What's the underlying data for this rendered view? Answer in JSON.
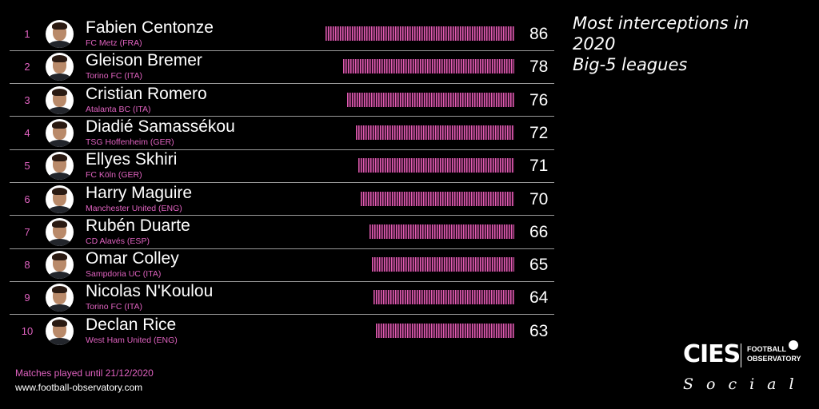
{
  "chart_data": {
    "type": "bar",
    "title_lines": [
      "Most interceptions in",
      "2020",
      "Big-5 leagues"
    ],
    "categories": [
      "Fabien Centonze",
      "Gleison Bremer",
      "Cristian Romero",
      "Diadié Samassékou",
      "Ellyes Skhiri",
      "Harry Maguire",
      "Rubén Duarte",
      "Omar Colley",
      "Nicolas N'Koulou",
      "Declan Rice"
    ],
    "values": [
      86,
      78,
      76,
      72,
      71,
      70,
      66,
      65,
      64,
      63
    ],
    "rows": [
      {
        "rank": "1",
        "name": "Fabien Centonze",
        "club": "FC Metz (FRA)",
        "value": 86
      },
      {
        "rank": "2",
        "name": "Gleison Bremer",
        "club": "Torino FC (ITA)",
        "value": 78
      },
      {
        "rank": "3",
        "name": "Cristian Romero",
        "club": "Atalanta BC (ITA)",
        "value": 76
      },
      {
        "rank": "4",
        "name": "Diadié Samassékou",
        "club": "TSG Hoffenheim (GER)",
        "value": 72
      },
      {
        "rank": "5",
        "name": "Ellyes Skhiri",
        "club": "FC Köln (GER)",
        "value": 71
      },
      {
        "rank": "6",
        "name": "Harry Maguire",
        "club": "Manchester United (ENG)",
        "value": 70
      },
      {
        "rank": "7",
        "name": "Rubén Duarte",
        "club": "CD Alavés (ESP)",
        "value": 66
      },
      {
        "rank": "8",
        "name": "Omar Colley",
        "club": "Sampdoria UC (ITA)",
        "value": 65
      },
      {
        "rank": "9",
        "name": "Nicolas N'Koulou",
        "club": "Torino FC (ITA)",
        "value": 64
      },
      {
        "rank": "10",
        "name": "Declan Rice",
        "club": "West Ham United (ENG)",
        "value": 63
      }
    ],
    "bar_color": "#e05cb0"
  },
  "footer": {
    "note": "Matches played until 21/12/2020",
    "website": "www.football-observatory.com"
  },
  "logo": {
    "brand": "CIES",
    "line1": "FOOTBALL",
    "line2": "OBSERVATORY",
    "tagline": "Social"
  },
  "colors": {
    "accent": "#e062c0",
    "background": "#000000"
  }
}
